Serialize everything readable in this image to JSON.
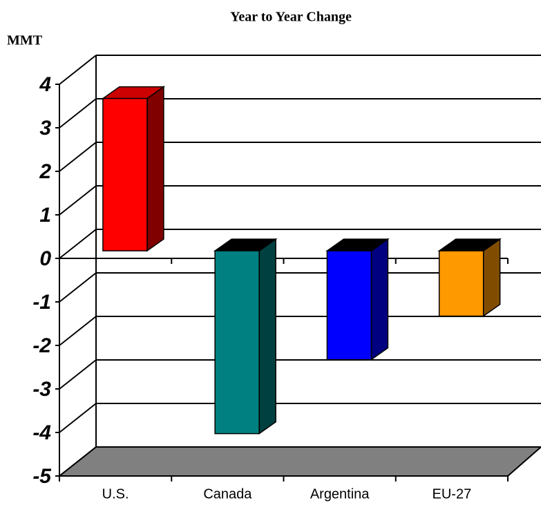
{
  "chart_data": {
    "type": "bar3d",
    "title": "Year to Year Change",
    "y_label": "MMT",
    "categories": [
      "U.S.",
      "Canada",
      "Argentina",
      "EU-27"
    ],
    "values": [
      3.5,
      -4.2,
      -2.5,
      -1.5
    ],
    "colors": [
      "#ff0000",
      "#008080",
      "#0000ff",
      "#ff9900"
    ],
    "ylim": [
      -5,
      4
    ],
    "yticks": [
      4,
      3,
      2,
      1,
      0,
      -1,
      -2,
      -3,
      -4,
      -5
    ],
    "grid": true
  }
}
